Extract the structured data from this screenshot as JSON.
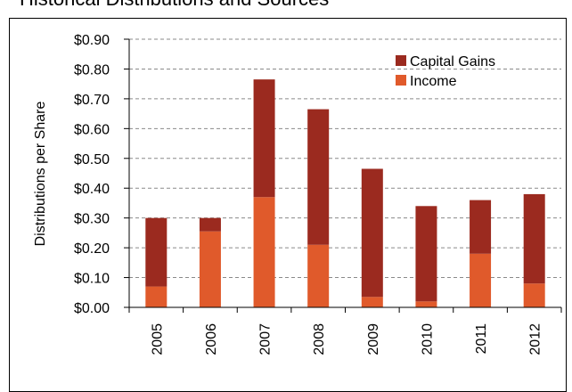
{
  "chart_data": {
    "type": "bar",
    "stacked": true,
    "title": "Historical Distributions and Sources",
    "xlabel": "",
    "ylabel": "Distributions per Share",
    "ylim": [
      0,
      0.9
    ],
    "yticks": [
      0,
      0.1,
      0.2,
      0.3,
      0.4,
      0.5,
      0.6,
      0.7,
      0.8,
      0.9
    ],
    "ytick_labels": [
      "$0.00",
      "$0.10",
      "$0.20",
      "$0.30",
      "$0.40",
      "$0.50",
      "$0.60",
      "$0.70",
      "$0.80",
      "$0.90"
    ],
    "categories": [
      "2005",
      "2006",
      "2007",
      "2008",
      "2009",
      "2010",
      "2011",
      "2012"
    ],
    "series": [
      {
        "name": "Income",
        "color": "#e05a2b",
        "values": [
          0.07,
          0.255,
          0.37,
          0.21,
          0.035,
          0.02,
          0.18,
          0.08
        ]
      },
      {
        "name": "Capital Gains",
        "color": "#9b2a1f",
        "values": [
          0.23,
          0.045,
          0.395,
          0.455,
          0.43,
          0.32,
          0.18,
          0.3
        ]
      }
    ],
    "legend": {
      "position": "top-right",
      "order": [
        "Capital Gains",
        "Income"
      ]
    },
    "grid": "horizontal-dashed"
  }
}
